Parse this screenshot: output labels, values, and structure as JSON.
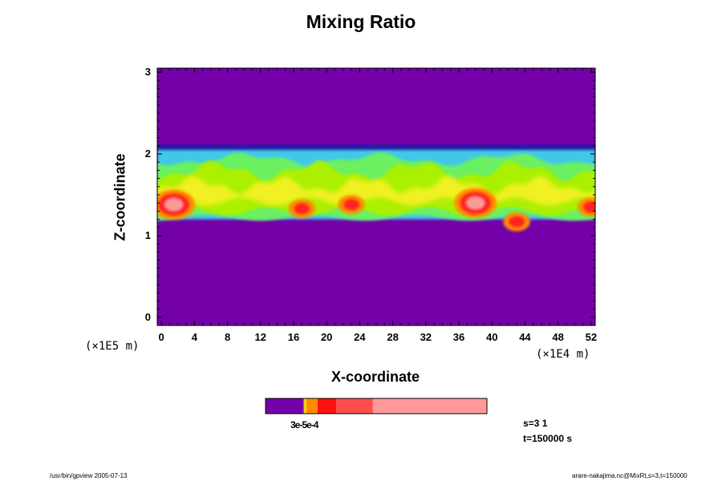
{
  "chart_data": {
    "type": "heatmap",
    "title": "Mixing Ratio",
    "xlabel": "X-coordinate",
    "ylabel": "Z-coordinate",
    "x_unit": "(×1E4 m)",
    "y_unit": "(×1E5 m)",
    "xlim": [
      -0.5,
      52.5
    ],
    "ylim": [
      -0.1,
      3.05
    ],
    "x_ticks": [
      0,
      4,
      8,
      12,
      16,
      20,
      24,
      28,
      32,
      36,
      40,
      44,
      48,
      52
    ],
    "y_ticks": [
      0,
      1,
      2,
      3
    ],
    "background_color": "#7300a9",
    "colorbar": {
      "label": "3e-5e-4",
      "colors": [
        "#7300a9",
        "#b07000",
        "#ffd700",
        "#ff8c00",
        "#ff1010",
        "#ff4d4d",
        "#ff9999"
      ],
      "fractions": [
        0.17,
        0.005,
        0.01,
        0.05,
        0.085,
        0.165,
        0.515
      ]
    },
    "mixing_layer": {
      "bottom_z": 1.2,
      "top_z": 2.05,
      "hot_spots": [
        {
          "x": 1.5,
          "z": 1.38,
          "level": "high"
        },
        {
          "x": 17,
          "z": 1.33,
          "level": "mid"
        },
        {
          "x": 23,
          "z": 1.38,
          "level": "mid"
        },
        {
          "x": 38,
          "z": 1.4,
          "level": "high"
        },
        {
          "x": 43,
          "z": 1.17,
          "level": "mid"
        },
        {
          "x": 52,
          "z": 1.35,
          "level": "mid"
        }
      ]
    }
  },
  "info": {
    "step": "s=3 1",
    "time": "t=150000 s"
  },
  "footer": {
    "left": "/usr/bin/gpview 2005-07-13",
    "right": "arare-nakajima.nc@MixRt,s=3,t=150000"
  }
}
